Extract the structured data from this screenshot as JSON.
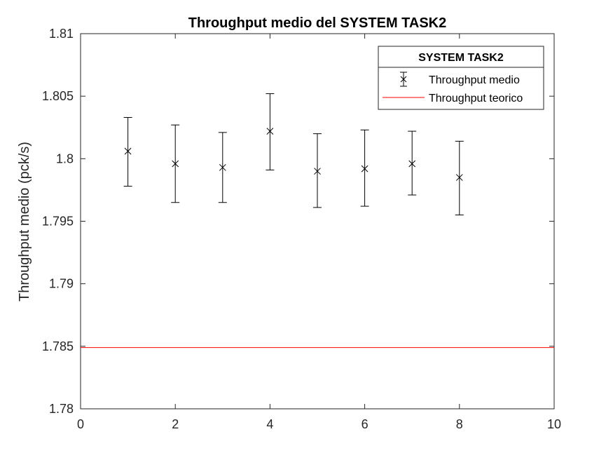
{
  "chart_data": {
    "type": "scatter",
    "title": "Throughput medio del SYSTEM TASK2",
    "xlabel": "",
    "ylabel": "Throughput medio (pck/s)",
    "xlim": [
      0,
      10
    ],
    "ylim": [
      1.78,
      1.81
    ],
    "xticks": [
      "0",
      "2",
      "4",
      "6",
      "8",
      "10"
    ],
    "yticks": [
      "1.78",
      "1.785",
      "1.79",
      "1.795",
      "1.8",
      "1.805",
      "1.81"
    ],
    "grid": false,
    "legend": {
      "title": "SYSTEM TASK2",
      "placement": "top-right",
      "entries": [
        "Throughput medio",
        "Throughput teorico"
      ]
    },
    "series": [
      {
        "name": "Throughput medio",
        "marker": "x",
        "color": "#000000",
        "x": [
          1,
          2,
          3,
          4,
          5,
          6,
          7,
          8
        ],
        "y": [
          1.8006,
          1.7996,
          1.7993,
          1.8022,
          1.799,
          1.7992,
          1.7996,
          1.7985
        ],
        "lower": [
          1.7978,
          1.7965,
          1.7965,
          1.7991,
          1.7961,
          1.7962,
          1.7971,
          1.7955
        ],
        "upper": [
          1.8033,
          1.8027,
          1.8021,
          1.8052,
          1.802,
          1.8023,
          1.8022,
          1.8014
        ]
      },
      {
        "name": "Throughput teorico",
        "type": "hline",
        "color": "#ff0000",
        "y": 1.7849
      }
    ]
  }
}
